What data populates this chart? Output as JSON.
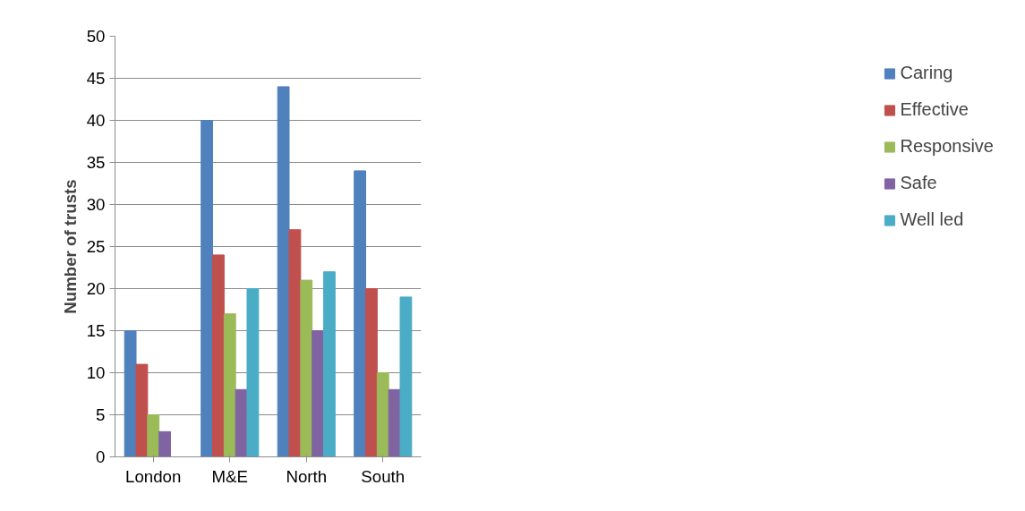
{
  "chart_data": {
    "type": "bar",
    "ylabel": "Number of trusts",
    "categories": [
      "London",
      "M&E",
      "North",
      "South"
    ],
    "series": [
      {
        "name": "Caring",
        "color": "#4f81bd",
        "values": [
          15,
          40,
          44,
          34
        ]
      },
      {
        "name": "Effective",
        "color": "#c0504d",
        "values": [
          11,
          24,
          27,
          20
        ]
      },
      {
        "name": "Responsive",
        "color": "#9bbb59",
        "values": [
          5,
          17,
          21,
          10
        ]
      },
      {
        "name": "Safe",
        "color": "#8064a2",
        "values": [
          3,
          8,
          15,
          8
        ]
      },
      {
        "name": "Well led",
        "color": "#4bacc6",
        "values": [
          0,
          20,
          22,
          19
        ]
      }
    ],
    "ylim": [
      0,
      50
    ],
    "yticks": [
      0,
      5,
      10,
      15,
      20,
      25,
      30,
      35,
      40,
      45,
      50
    ],
    "grid": "y",
    "legend": "right"
  }
}
